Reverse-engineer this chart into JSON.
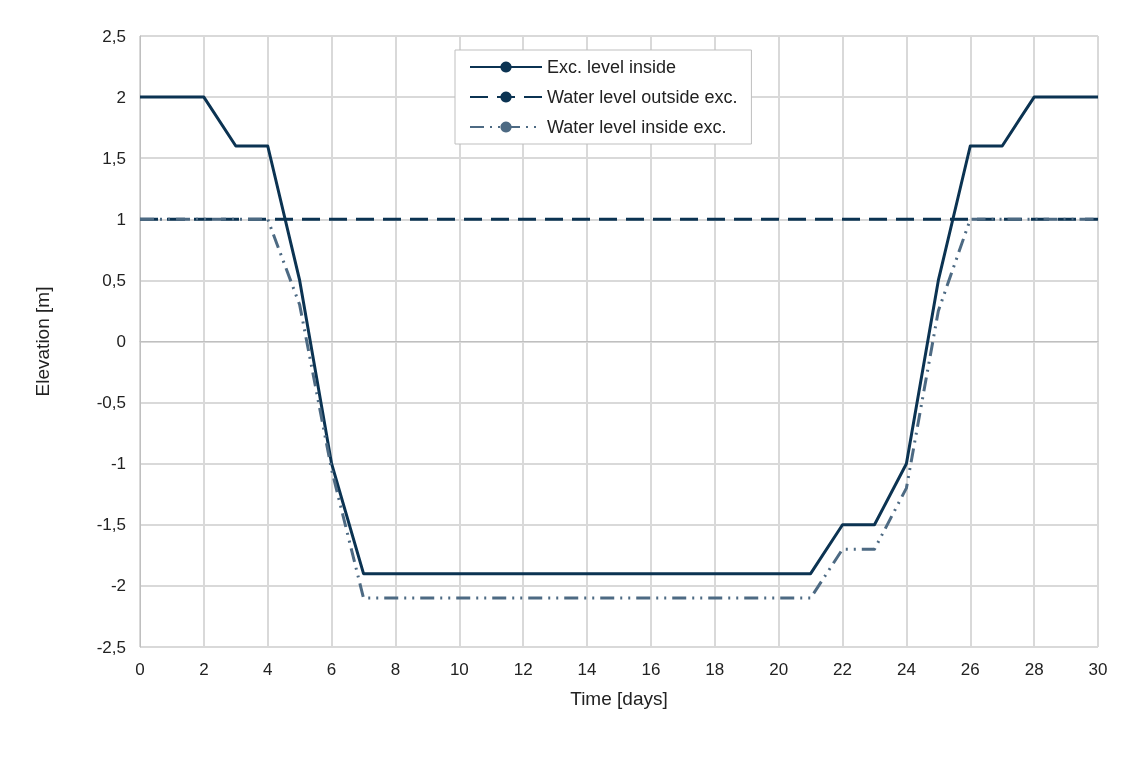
{
  "chart_data": {
    "type": "line",
    "xlabel": "Time [days]",
    "ylabel": "Elevation [m]",
    "xlim": [
      0,
      30
    ],
    "xticks": [
      0,
      2,
      4,
      6,
      8,
      10,
      12,
      14,
      16,
      18,
      20,
      22,
      24,
      26,
      28,
      30
    ],
    "ylim": [
      -2.5,
      2.5
    ],
    "yticks": [
      {
        "value": -2.5,
        "label": "-2,5"
      },
      -2,
      {
        "value": -1.5,
        "label": "-1,5"
      },
      -1,
      {
        "value": -0.5,
        "label": "-0,5"
      },
      0,
      {
        "value": 0.5,
        "label": "0,5"
      },
      1,
      {
        "value": 1.5,
        "label": "1,5"
      },
      2,
      {
        "value": 2.5,
        "label": "2,5"
      }
    ],
    "grid": true,
    "legend": "top",
    "marker": "none",
    "series": [
      {
        "name": "Exc. level inside",
        "color": "#0b3352",
        "line_style": "solid",
        "x": [
          0,
          2,
          3,
          4,
          5,
          6,
          7,
          21,
          22,
          23,
          24,
          25,
          26,
          27,
          28,
          30
        ],
        "values": [
          2,
          2,
          1.6,
          1.6,
          0.5,
          -1,
          -1.9,
          -1.9,
          -1.5,
          -1.5,
          -1,
          0.5,
          1.6,
          1.6,
          2,
          2
        ]
      },
      {
        "name": "Water level outside exc.",
        "color": "#0b3352",
        "line_style": "dashed",
        "x": [
          0,
          30
        ],
        "values": [
          1,
          1
        ]
      },
      {
        "name": "Water level inside exc.",
        "color": "#4d6a83",
        "line_style": "dashdotdot",
        "x": [
          0,
          4,
          5,
          6,
          7,
          21,
          22,
          23,
          24,
          25,
          26,
          30
        ],
        "values": [
          1,
          1,
          0.3,
          -1.05,
          -2.1,
          -2.1,
          -1.7,
          -1.7,
          -1.2,
          0.25,
          1,
          1
        ]
      }
    ]
  }
}
